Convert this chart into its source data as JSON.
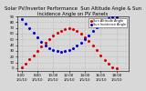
{
  "title": "Solar PV/Inverter Performance  Sun Altitude Angle & Sun Incidence Angle on PV Panels",
  "ylim": [
    -5,
    90
  ],
  "xlim": [
    5.5,
    19.5
  ],
  "series": [
    {
      "label": "Sun Altitude Angle",
      "color": "#dd0000",
      "x": [
        6.0,
        6.5,
        7.0,
        7.5,
        8.0,
        8.5,
        9.0,
        9.5,
        10.0,
        10.5,
        11.0,
        11.5,
        12.0,
        12.5,
        13.0,
        13.5,
        14.0,
        14.5,
        15.0,
        15.5,
        16.0,
        16.5,
        17.0,
        17.5,
        18.0
      ],
      "y": [
        2,
        8,
        15,
        22,
        30,
        37,
        44,
        50,
        56,
        61,
        65,
        68,
        69,
        68,
        65,
        60,
        54,
        47,
        39,
        31,
        22,
        14,
        7,
        2,
        0
      ]
    },
    {
      "label": "Sun Incidence Angle",
      "color": "#0000dd",
      "x": [
        6.0,
        6.5,
        7.0,
        7.5,
        8.0,
        8.5,
        9.0,
        9.5,
        10.0,
        10.5,
        11.0,
        11.5,
        12.0,
        12.5,
        13.0,
        13.5,
        14.0,
        14.5,
        15.0,
        15.5,
        16.0,
        16.5,
        17.0,
        17.5,
        18.0
      ],
      "y": [
        85,
        78,
        70,
        62,
        53,
        46,
        40,
        35,
        32,
        30,
        29,
        30,
        32,
        35,
        39,
        44,
        50,
        57,
        64,
        71,
        78,
        83,
        87,
        88,
        89
      ]
    }
  ],
  "yticks": [
    0,
    10,
    20,
    30,
    40,
    50,
    60,
    70,
    80,
    90
  ],
  "xtick_labels": [
    "6:00\n1/1/10",
    "8:00\n1/1/10",
    "10:00\n1/1/10",
    "12:00\n1/1/10",
    "14:00\n1/1/10",
    "16:00\n1/1/10",
    "18:00\n1/1/10"
  ],
  "xtick_values": [
    6,
    8,
    10,
    12,
    14,
    16,
    18
  ],
  "grid_color": "#bbbbbb",
  "background_color": "#d8d8d8",
  "title_fontsize": 3.8,
  "tick_fontsize": 2.8,
  "legend_fontsize": 2.5,
  "marker_size": 1.2
}
